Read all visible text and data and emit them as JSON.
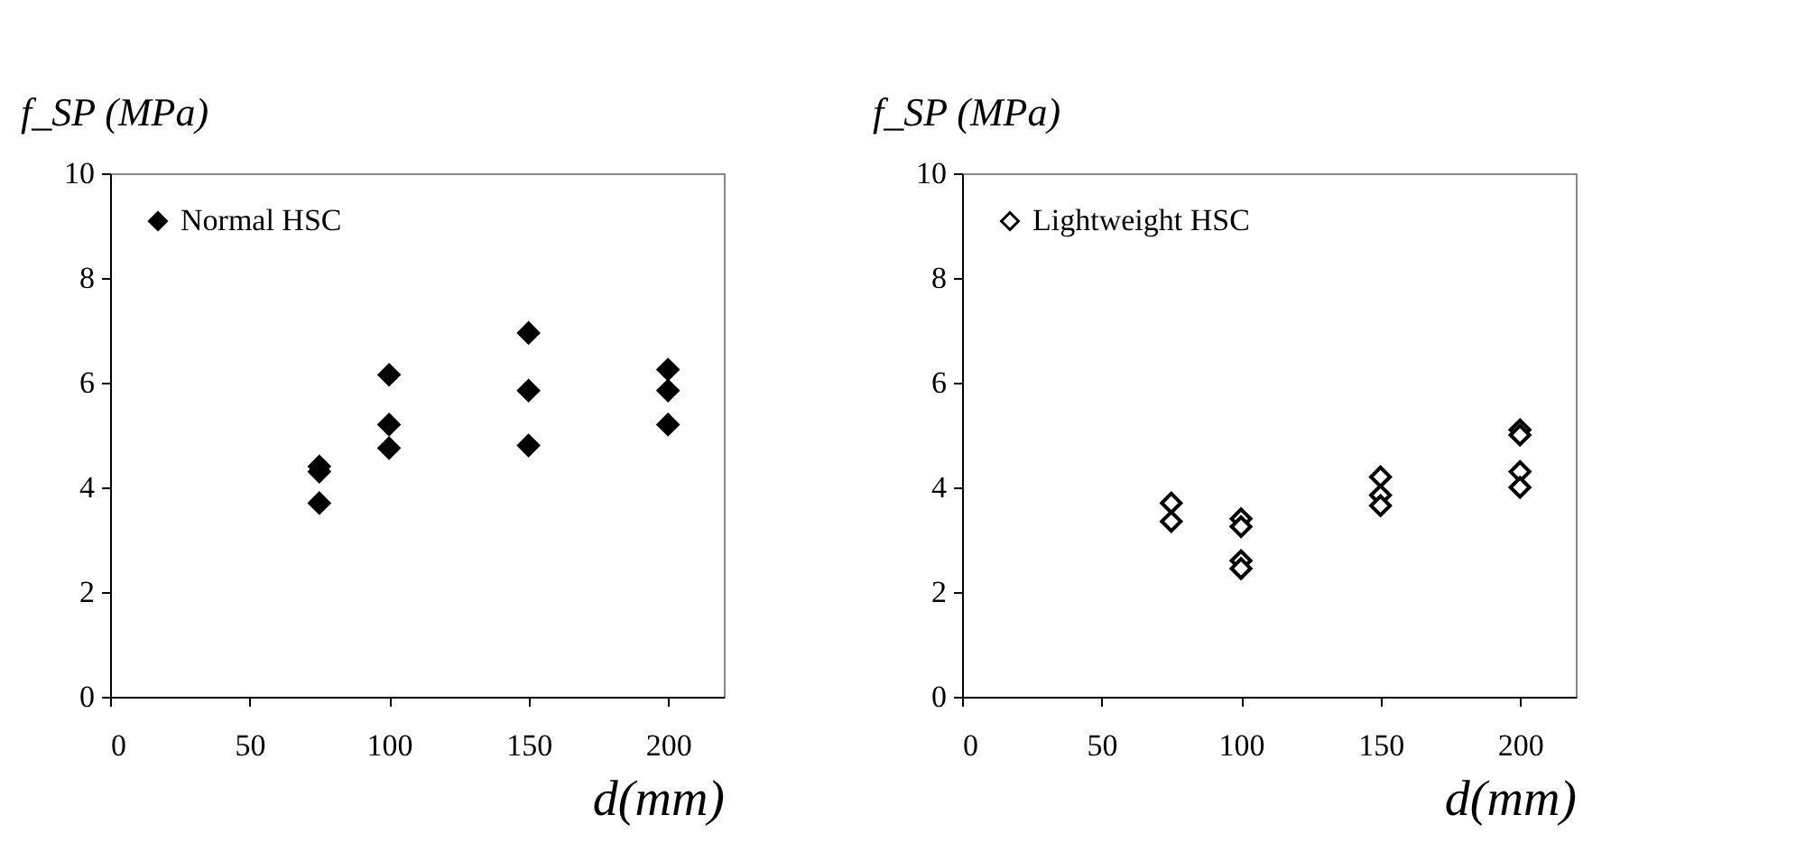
{
  "chart_data": [
    {
      "type": "scatter",
      "xlabel": "d(mm)",
      "ylabel": "f_SP (MPa)",
      "xlim": [
        0,
        220
      ],
      "xticks": [
        0,
        50,
        100,
        150,
        200
      ],
      "ylim": [
        0,
        10
      ],
      "yticks": [
        0,
        2,
        4,
        6,
        8,
        10
      ],
      "marker": "diamond",
      "legend": "top left",
      "grid": false,
      "series": [
        {
          "name": "Normal  HSC",
          "color": "#000000",
          "x": [
            75,
            75,
            75,
            100,
            100,
            100,
            150,
            150,
            150,
            200,
            200,
            200
          ],
          "values": [
            4.4,
            4.3,
            3.7,
            6.15,
            5.2,
            4.75,
            6.95,
            5.85,
            4.8,
            6.25,
            5.85,
            5.2
          ]
        }
      ]
    },
    {
      "type": "scatter",
      "xlabel": "d(mm)",
      "ylabel": "f_SP (MPa)",
      "xlim": [
        0,
        220
      ],
      "xticks": [
        0,
        50,
        100,
        150,
        200
      ],
      "ylim": [
        0,
        10
      ],
      "yticks": [
        0,
        2,
        4,
        6,
        8,
        10
      ],
      "marker": "diamond",
      "legend": "top left",
      "grid": false,
      "series": [
        {
          "name": "Lightweight HSC",
          "color": "#ffffff",
          "x": [
            75,
            75,
            100,
            100,
            100,
            100,
            150,
            150,
            150,
            200,
            200,
            200,
            200
          ],
          "values": [
            3.7,
            3.35,
            3.4,
            3.25,
            2.6,
            2.45,
            4.2,
            3.85,
            3.65,
            5.1,
            5.0,
            4.3,
            4.0
          ]
        }
      ]
    }
  ]
}
